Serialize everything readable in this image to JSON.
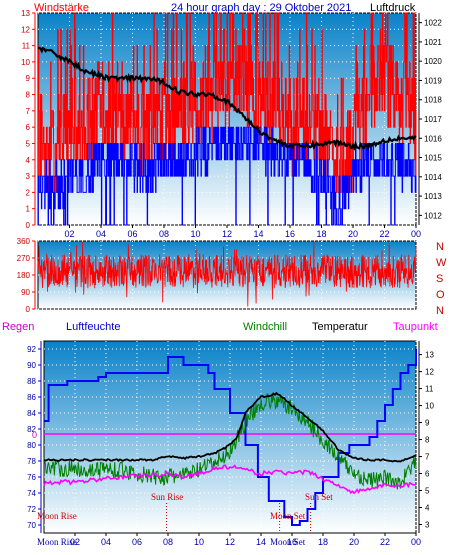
{
  "header": {
    "left": "Windstärke",
    "title": "24 hour graph day : 29 Oktober 2021",
    "right": "Luftdruck"
  },
  "panel2_labels": [
    "N",
    "W",
    "S",
    "O",
    "N"
  ],
  "panel3_header": {
    "regen": "Regen",
    "luftfeuchte": "Luftfeuchte",
    "windchill": "Windchill",
    "temperatur": "Temperatur",
    "taupunkt": "Taupunkt"
  },
  "panel3_annotations": {
    "moon_rise": "Moon Rise",
    "sun_rise": "Sun Rise",
    "sun_set": "Sun Set",
    "moon_set": "Moon Set",
    "moon_rise_axis": "Moon Rise",
    "moon_set_axis": "Moon Set",
    "rain_zero": "0"
  },
  "colors": {
    "wind_avg": "#ff0000",
    "wind_gust": "#0000ff",
    "pressure": "#000000",
    "direction": "#ff0000",
    "humidity": "#0000ff",
    "temperature": "#000000",
    "windchill": "#008000",
    "dewpoint": "#ff00ff",
    "rain": "#ff00ff",
    "bg_top": "#0a82c8",
    "bg_bottom": "#ffffff"
  },
  "chart_data": [
    {
      "type": "line",
      "name": "wind-pressure",
      "x_tick_labels": [
        "02",
        "04",
        "06",
        "08",
        "10",
        "12",
        "14",
        "16",
        "18",
        "20",
        "22",
        "00"
      ],
      "x_range_hours": [
        0,
        24
      ],
      "left_axis_ticks": [
        0,
        1,
        2,
        3,
        4,
        5,
        6,
        7,
        8,
        9,
        10,
        11,
        12,
        13
      ],
      "right_axis_ticks": [
        1012,
        1013,
        1014,
        1015,
        1016,
        1017,
        1018,
        1019,
        1020,
        1021,
        1022
      ],
      "left_ylim": [
        0,
        13
      ],
      "right_ylim": [
        1011.5,
        1022.5
      ],
      "pressure": {
        "x": [
          0,
          1,
          2,
          3,
          4,
          5,
          6,
          7,
          8,
          9,
          10,
          11,
          12,
          13,
          14,
          15,
          16,
          17,
          18,
          19,
          20,
          21,
          22,
          23,
          24
        ],
        "y": [
          1020.7,
          1020.4,
          1020.0,
          1019.5,
          1019.2,
          1019.1,
          1019.1,
          1019.1,
          1018.9,
          1018.4,
          1018.3,
          1018.3,
          1017.9,
          1017.2,
          1016.4,
          1015.9,
          1015.6,
          1015.6,
          1015.7,
          1015.8,
          1015.6,
          1015.6,
          1015.9,
          1016.0,
          1016.0
        ]
      },
      "wind_avg": {
        "x": [
          0,
          1,
          2,
          3,
          4,
          5,
          6,
          7,
          8,
          9,
          10,
          11,
          12,
          13,
          14,
          15,
          16,
          17,
          18,
          19,
          20,
          21,
          22,
          23,
          24
        ],
        "y": [
          5,
          5,
          6,
          6,
          7,
          7,
          6,
          6,
          7,
          7,
          8,
          8,
          9,
          9,
          8,
          7,
          6,
          6,
          6,
          3,
          5,
          8,
          9,
          8,
          6
        ]
      },
      "wind_gust": {
        "x": [
          0,
          1,
          2,
          3,
          4,
          5,
          6,
          7,
          8,
          9,
          10,
          11,
          12,
          13,
          14,
          15,
          16,
          17,
          18,
          19,
          20,
          21,
          22,
          23,
          24
        ],
        "y": [
          3,
          2,
          3,
          3,
          4,
          4,
          4,
          3,
          4,
          4,
          4,
          5,
          5,
          5,
          5,
          4,
          4,
          4,
          3,
          1,
          3,
          4,
          4,
          4,
          3
        ]
      }
    },
    {
      "type": "line",
      "name": "wind-direction",
      "left_axis_ticks": [
        0,
        90,
        180,
        270,
        360
      ],
      "ylim": [
        0,
        360
      ],
      "x_range_hours": [
        0,
        24
      ],
      "direction_mean_deg": 200,
      "direction_spread_deg": 90
    },
    {
      "type": "line",
      "name": "temperature-humidity",
      "x_tick_labels": [
        "02",
        "04",
        "06",
        "08",
        "10",
        "12",
        "14",
        "16",
        "18",
        "20",
        "22",
        "00"
      ],
      "x_range_hours": [
        0,
        24
      ],
      "left_axis_ticks": [
        70,
        72,
        74,
        76,
        78,
        80,
        82,
        84,
        86,
        88,
        90,
        92
      ],
      "right_axis_ticks": [
        3,
        4,
        5,
        6,
        7,
        8,
        9,
        10,
        11,
        12,
        13
      ],
      "left_ylim": [
        69,
        93
      ],
      "right_ylim": [
        2.5,
        13.8
      ],
      "humidity": {
        "x": [
          0,
          0.3,
          1.2,
          1.5,
          2.5,
          3.5,
          4,
          5,
          6,
          7,
          8,
          8.6,
          9,
          9.5,
          10.3,
          10.6,
          11,
          12,
          13,
          13.8,
          14.5,
          15.5,
          16,
          16.5,
          17,
          17.5,
          18,
          19,
          19.7,
          20.5,
          21,
          21.5,
          22,
          22.5,
          23,
          23.5,
          24
        ],
        "y": [
          83,
          87.5,
          87.5,
          88,
          88,
          88.5,
          89,
          89,
          89,
          89,
          91,
          91,
          90,
          90,
          90,
          89,
          87,
          84,
          80,
          76,
          73,
          71,
          70,
          70.5,
          72,
          74,
          76,
          79,
          80,
          80,
          81,
          83,
          85,
          87,
          89,
          90,
          92
        ]
      },
      "temperature": {
        "x": [
          0,
          1,
          2,
          3,
          4,
          5,
          6,
          7,
          7.5,
          8,
          9,
          10,
          11,
          11.5,
          12,
          12.5,
          13,
          14,
          15,
          15.5,
          16,
          17,
          18,
          19,
          20,
          21,
          22,
          23,
          24
        ],
        "y": [
          6.8,
          6.8,
          6.8,
          6.8,
          6.8,
          6.8,
          6.8,
          6.8,
          6.9,
          7.0,
          6.9,
          7.0,
          7.2,
          7.4,
          7.7,
          8.2,
          9.6,
          10.5,
          10.7,
          10.4,
          10.0,
          9.3,
          8.5,
          7.4,
          6.9,
          6.8,
          6.8,
          6.7,
          7.1
        ]
      },
      "windchill": {
        "x": [
          0,
          1,
          2,
          3,
          4,
          5,
          6,
          7,
          8,
          9,
          10,
          11,
          12,
          13,
          14,
          15,
          16,
          17,
          18,
          19,
          20,
          21,
          22,
          23,
          24
        ],
        "y": [
          6.5,
          6.3,
          6.3,
          6.2,
          6.3,
          6.2,
          6.0,
          5.8,
          5.8,
          5.9,
          6.2,
          6.6,
          7.3,
          9.0,
          10.2,
          10.3,
          9.8,
          9.0,
          8.0,
          6.9,
          6.0,
          5.6,
          5.7,
          5.5,
          6.7
        ]
      },
      "dewpoint": {
        "x": [
          0,
          1,
          2,
          3,
          4,
          5,
          6,
          7,
          8,
          9,
          10,
          11,
          12,
          13,
          14,
          15,
          16,
          17,
          18,
          19,
          20,
          21,
          22,
          23,
          24
        ],
        "y": [
          5.4,
          5.5,
          5.5,
          5.6,
          5.7,
          5.8,
          5.9,
          5.9,
          6.0,
          5.8,
          6.0,
          6.3,
          6.4,
          6.2,
          6.0,
          6.1,
          6.0,
          6.1,
          5.7,
          5.3,
          4.9,
          5.1,
          5.3,
          5.3,
          5.4
        ]
      },
      "rain": {
        "x": [
          0,
          24
        ],
        "y": [
          0,
          0
        ]
      },
      "events": {
        "sun_rise_hour": 7.9,
        "sun_set_hour": 17.2,
        "moon_set_hour": 15.2,
        "moon_rise_hour": 0.0
      }
    }
  ]
}
